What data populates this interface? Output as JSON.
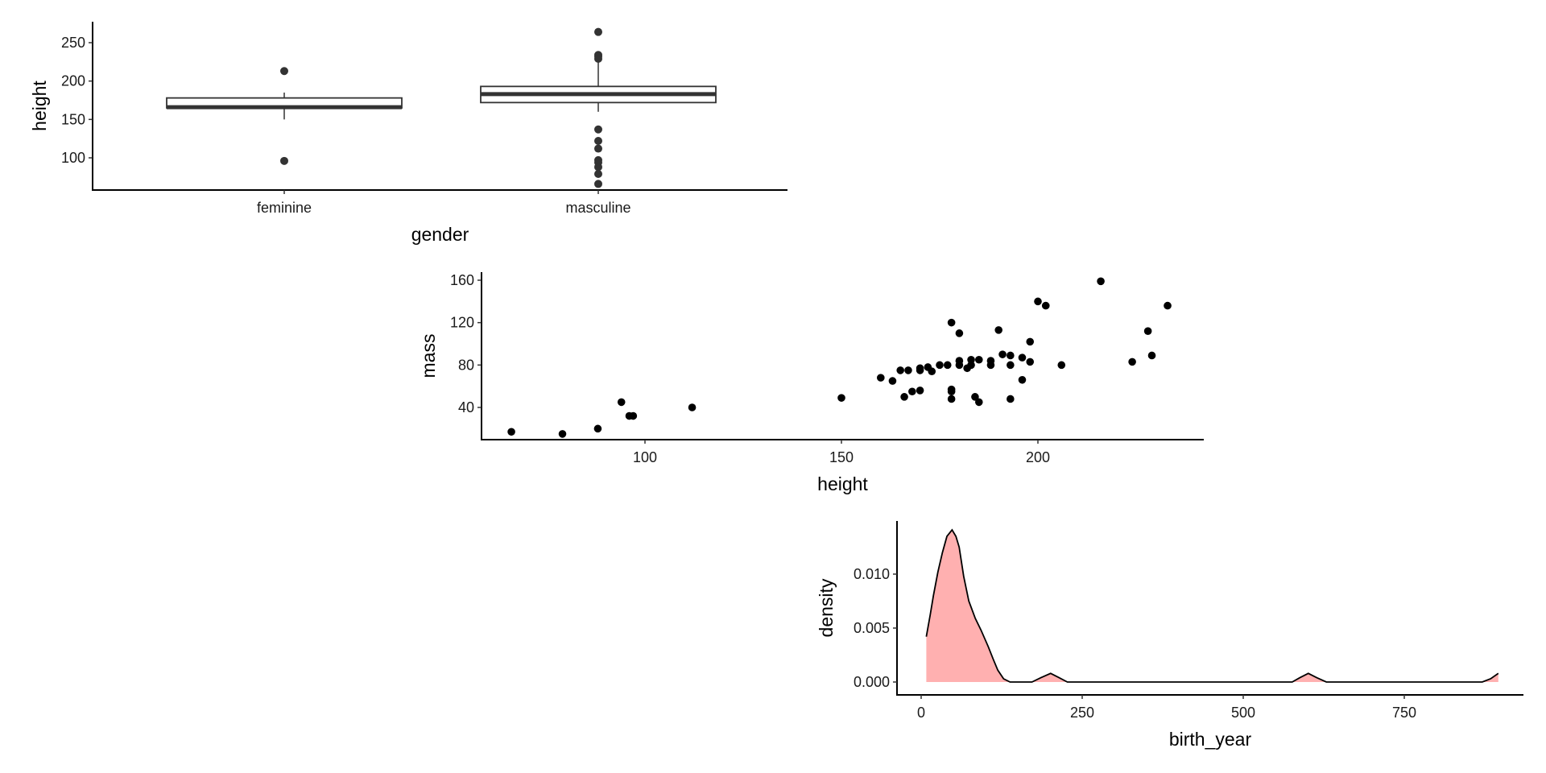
{
  "chart_data": [
    {
      "type": "boxplot",
      "xlabel": "gender",
      "ylabel": "height",
      "ylim": [
        60,
        272
      ],
      "yticks": [
        "100",
        "150",
        "200",
        "250"
      ],
      "categories": [
        "feminine",
        "masculine"
      ],
      "boxes": [
        {
          "category": "feminine",
          "lower_whisker": 150,
          "q1": 165,
          "median": 166,
          "q3": 178,
          "upper_whisker": 185,
          "outliers": [
            213,
            96
          ]
        },
        {
          "category": "masculine",
          "lower_whisker": 160,
          "q1": 172,
          "median": 183,
          "q3": 193,
          "upper_whisker": 228,
          "outliers": [
            264,
            234,
            232,
            229,
            137,
            122,
            112,
            97,
            94,
            88,
            79,
            66
          ]
        }
      ]
    },
    {
      "type": "scatter",
      "xlabel": "height",
      "ylabel": "mass",
      "xlim": [
        58,
        240
      ],
      "ylim": [
        10,
        166
      ],
      "xticks": [
        "100",
        "150",
        "200"
      ],
      "yticks": [
        "40",
        "80",
        "120",
        "160"
      ],
      "points": [
        [
          66,
          17
        ],
        [
          79,
          15
        ],
        [
          88,
          20
        ],
        [
          94,
          45
        ],
        [
          96,
          32
        ],
        [
          97,
          32
        ],
        [
          112,
          40
        ],
        [
          150,
          49
        ],
        [
          160,
          68
        ],
        [
          163,
          65
        ],
        [
          165,
          75
        ],
        [
          167,
          75
        ],
        [
          166,
          50
        ],
        [
          168,
          55
        ],
        [
          170,
          56
        ],
        [
          170,
          77
        ],
        [
          170,
          75
        ],
        [
          172,
          78
        ],
        [
          173,
          74
        ],
        [
          175,
          80
        ],
        [
          177,
          80
        ],
        [
          178,
          120
        ],
        [
          178,
          57
        ],
        [
          178,
          55
        ],
        [
          178,
          48
        ],
        [
          180,
          110
        ],
        [
          180,
          84
        ],
        [
          180,
          80
        ],
        [
          182,
          77
        ],
        [
          183,
          80
        ],
        [
          183,
          85
        ],
        [
          184,
          50
        ],
        [
          185,
          85
        ],
        [
          185,
          45
        ],
        [
          188,
          84
        ],
        [
          188,
          80
        ],
        [
          190,
          113
        ],
        [
          191,
          90
        ],
        [
          193,
          89
        ],
        [
          193,
          80
        ],
        [
          193,
          48
        ],
        [
          196,
          87
        ],
        [
          196,
          66
        ],
        [
          198,
          102
        ],
        [
          198,
          83
        ],
        [
          200,
          140
        ],
        [
          202,
          136
        ],
        [
          206,
          80
        ],
        [
          216,
          159
        ],
        [
          224,
          83
        ],
        [
          228,
          112
        ],
        [
          229,
          89
        ],
        [
          233,
          136
        ]
      ]
    },
    {
      "type": "area",
      "xlabel": "birth_year",
      "ylabel": "density",
      "xlim": [
        -35,
        935
      ],
      "ylim": [
        -0.0006,
        0.0148
      ],
      "xticks": [
        "0",
        "250",
        "500",
        "750"
      ],
      "yticks": [
        "0.000",
        "0.005",
        "0.010"
      ],
      "fill": "#ffb0b0",
      "points": [
        [
          8,
          0
        ],
        [
          8,
          0.0042
        ],
        [
          14,
          0.0062
        ],
        [
          19,
          0.008
        ],
        [
          26,
          0.0102
        ],
        [
          33,
          0.012
        ],
        [
          40,
          0.0135
        ],
        [
          48,
          0.0141
        ],
        [
          54,
          0.0135
        ],
        [
          59,
          0.0125
        ],
        [
          66,
          0.0098
        ],
        [
          74,
          0.0075
        ],
        [
          84,
          0.0059
        ],
        [
          93,
          0.0048
        ],
        [
          104,
          0.0033
        ],
        [
          112,
          0.0021
        ],
        [
          119,
          0.0011
        ],
        [
          128,
          0.0003
        ],
        [
          138,
          0
        ],
        [
          172,
          0
        ],
        [
          186,
          0.0004
        ],
        [
          201,
          0.0008
        ],
        [
          214,
          0.0004
        ],
        [
          227,
          0
        ],
        [
          576,
          0
        ],
        [
          588,
          0.0004
        ],
        [
          601,
          0.0008
        ],
        [
          614,
          0.0004
        ],
        [
          629,
          0
        ],
        [
          871,
          0
        ],
        [
          884,
          0.0003
        ],
        [
          896,
          0.0008
        ]
      ]
    }
  ]
}
